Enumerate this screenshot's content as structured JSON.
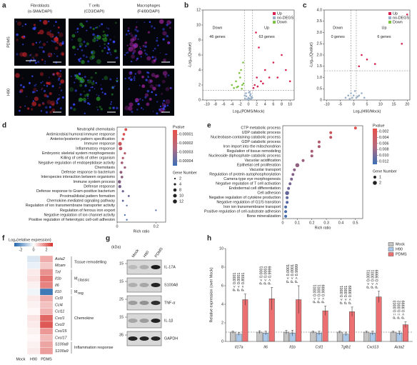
{
  "panel_labels": [
    "a",
    "b",
    "c",
    "d",
    "e",
    "f",
    "g",
    "h"
  ],
  "panel_a": {
    "columns": [
      {
        "title": "Fibroblasts",
        "stain": "(α-SMA/DAPI)",
        "color": "#d9262c"
      },
      {
        "title": "T cells",
        "stain": "(CD3/DAPI)",
        "color": "#2a9d2a"
      },
      {
        "title": "Macrophages",
        "stain": "(F4/80/DAPI)",
        "color": "#a626a4"
      }
    ],
    "rows": [
      "PDMS",
      "H90"
    ],
    "scale_bar": "25 μm",
    "marker": "*"
  },
  "chart_data": [
    {
      "type": "scatter",
      "xlabel": "Log₂(PDMS/Mock)",
      "ylabel": "-Log₁₀(Qvalue)",
      "xlim": [
        -11,
        11
      ],
      "xticks": [
        -10,
        -8,
        -6,
        -4,
        -2,
        0,
        2,
        4,
        6,
        8,
        10
      ],
      "ylim": [
        0,
        12
      ],
      "yticks": [
        0,
        2,
        4,
        6,
        8,
        10,
        12
      ],
      "vlines": [
        -1,
        1
      ],
      "hlines": [
        1.3
      ],
      "legend": "top-right",
      "annotations": [
        {
          "text": "Down",
          "color": "#3a9a3a"
        },
        {
          "text": "46 genes",
          "color": "#3a9a3a"
        },
        {
          "text": "Up",
          "color": "#d6204e"
        },
        {
          "text": "63 genes",
          "color": "#d6204e"
        }
      ],
      "series": [
        {
          "name": "Up",
          "color": "#d6204e",
          "x": [
            1.2,
            1.5,
            2,
            2.5,
            3,
            4,
            5,
            6,
            7,
            8,
            9,
            10,
            2.2,
            3.5,
            1.8
          ],
          "y": [
            1.6,
            2,
            3,
            7,
            2.5,
            4,
            3,
            5,
            3,
            6,
            4,
            2.5,
            1.8,
            2.2,
            9
          ]
        },
        {
          "name": "no-DEGS",
          "color": "#9bb0c8",
          "x": [
            -0.8,
            -0.5,
            -0.3,
            0,
            0.2,
            0.4,
            0.7,
            -0.6,
            0.1,
            0.5,
            -0.2,
            0.9,
            -0.9,
            0.3,
            0.6
          ],
          "y": [
            0.2,
            0.5,
            0.1,
            0.3,
            0.2,
            0.6,
            0.4,
            0.9,
            1.0,
            0.8,
            0.05,
            0.3,
            0.6,
            1.1,
            0.15
          ]
        },
        {
          "name": "Down",
          "color": "#7dc242",
          "x": [
            -1.3,
            -1.5,
            -1.8,
            -2,
            -2.2,
            -2.5,
            -3,
            -4,
            -1.6,
            -2.8,
            -1.2,
            -3.5
          ],
          "y": [
            5,
            2,
            4,
            3,
            3.6,
            1.8,
            2.5,
            2,
            1.5,
            1.7,
            2.2,
            1.6
          ]
        }
      ]
    },
    {
      "type": "scatter",
      "xlabel": "Log₂(H90/Mock)",
      "ylabel": "-Log₁₀(Qvalue)",
      "xlim": [
        -11,
        21
      ],
      "xticks": [
        -10,
        -5,
        0,
        5,
        10,
        15,
        20
      ],
      "ylim": [
        0,
        4
      ],
      "yticks": [
        0,
        0.5,
        {
          "value": 1,
          "label": "1.0"
        },
        1.5,
        {
          "value": 2,
          "label": "2.0"
        },
        2.5,
        {
          "value": 3,
          "label": "3.0"
        },
        3.5,
        {
          "value": 4,
          "label": "4.0"
        }
      ],
      "vlines": [
        -1,
        1
      ],
      "hlines": [
        1.3
      ],
      "legend": "top-right",
      "annotations": [
        {
          "text": "Down",
          "color": "#3a9a3a"
        },
        {
          "text": "0 genes",
          "color": "#3a9a3a"
        },
        {
          "text": "Up",
          "color": "#d6204e"
        },
        {
          "text": "6 genes",
          "color": "#d6204e"
        }
      ],
      "series": [
        {
          "name": "Up",
          "color": "#d6204e",
          "x": [
            2,
            3,
            5,
            8,
            18,
            20
          ],
          "y": [
            1.5,
            2,
            1.8,
            1.6,
            2.5,
            3.8
          ]
        },
        {
          "name": "no-DEGS",
          "color": "#9bb0c8",
          "x": [
            -3,
            -2,
            -1,
            -0.5,
            0,
            0.5,
            1,
            2,
            3,
            4,
            -1.5,
            1.5
          ],
          "y": [
            0.1,
            0.2,
            0.3,
            0.1,
            0.2,
            0.4,
            0.1,
            0.2,
            0.3,
            0.1,
            0.05,
            0.15
          ]
        },
        {
          "name": "Down",
          "color": "#7dc242",
          "x": [],
          "y": []
        }
      ]
    },
    {
      "type": "bubble",
      "xlabel": "Rich ratio",
      "color_label": "Pvalue",
      "size_label": "Gene Number",
      "categories": [
        "Neutrophil chemotaxis",
        "Antimicrobial humoral immune response",
        "Anterior/posterior pattern specification",
        "Immune response",
        "Inflammatory response",
        "Embryonic skeletal system morphogenesis",
        "Killing of cells of other organism",
        "Negative regulation of endopeptidase activity",
        "Chemotaxis",
        "Defense response to bacterium",
        "Interspecies interaction between organisms",
        "Immune system process",
        "Defense response",
        "Defense response to Gram-positive bacterium",
        "Proximal/distal pattern formation",
        "Chemokine-mediated signaling pathway",
        "Regulation of ion transmembrane transporter activity",
        "Regulation of ferrous iron export",
        "Negative regulation of ion channel activity",
        "Positive regulation of heterotypic cell-cell adhesion"
      ],
      "values": [
        0.045,
        0.035,
        0.03,
        0.015,
        0.018,
        0.04,
        0.03,
        0.025,
        0.04,
        0.02,
        0.025,
        0.012,
        0.014,
        0.03,
        0.06,
        0.03,
        0.05,
        0.2,
        0.04,
        0.05
      ],
      "pvalues": [
        8e-06,
        9e-06,
        1e-05,
        1.2e-05,
        1.4e-05,
        1.6e-05,
        1.8e-05,
        2e-05,
        2.2e-05,
        2.4e-05,
        2.6e-05,
        2.8e-05,
        3e-05,
        3.2e-05,
        3.4e-05,
        3.6e-05,
        3.8e-05,
        4e-05,
        4.1e-05,
        4.2e-05
      ],
      "gene_counts": [
        6,
        5,
        5,
        10,
        9,
        4,
        4,
        5,
        4,
        6,
        5,
        8,
        7,
        4,
        3,
        3,
        2,
        2,
        2,
        2
      ],
      "xlim": [
        0,
        0.25
      ],
      "xticks": [
        0,
        0.2
      ],
      "clim": [
        5e-06,
        4.5e-05
      ],
      "cticks": [
        1e-05,
        2e-05,
        3e-05,
        4e-05
      ],
      "size_legend": [
        2,
        4,
        8,
        10,
        12
      ]
    },
    {
      "type": "bubble",
      "xlabel": "Rich ratio",
      "color_label": "Pvalue",
      "size_label": "Gene Number",
      "categories": [
        "CTP metabolic process",
        "UDP catabolic process",
        "Nucleobase-containing catabolic process",
        "GDP catabolic process",
        "Iron import into the mitochondrion",
        "Regulation of tissue remodeling",
        "Nucleoside diphosphate catabolic process",
        "Vacuolar acidification",
        "Epithelial cell proliferation",
        "Vacuolar transport",
        "Regulation of protein autophosphorylation",
        "Camera-type eye morphogenesis",
        "Negative regulation of T cell activation",
        "Endodermal cell differentiation",
        "Cell adhesion",
        "Negative regulation of cytokine production",
        "Negative regulation of G1/S transition",
        "Iron ion transmembrane transport",
        "Positive regulation of cell-substrate adhesion",
        "Bone mineralization"
      ],
      "values": [
        0.5,
        0.33,
        0.33,
        0.25,
        0.25,
        0.2,
        0.2,
        0.14,
        0.1,
        0.08,
        0.07,
        0.06,
        0.05,
        0.04,
        0.03,
        0.03,
        0.03,
        0.02,
        0.02,
        0.02
      ],
      "pvalues": [
        0.0015,
        0.003,
        0.004,
        0.0045,
        0.005,
        0.0055,
        0.006,
        0.0065,
        0.007,
        0.0075,
        0.008,
        0.0085,
        0.009,
        0.0095,
        0.01,
        0.0105,
        0.011,
        0.0115,
        0.012,
        0.0125
      ],
      "gene_counts": [
        1,
        1,
        1,
        1,
        1,
        1,
        1,
        1,
        2,
        1,
        1,
        1,
        1,
        1,
        2,
        1,
        1,
        1,
        1,
        1
      ],
      "xlim": [
        0,
        0.55
      ],
      "xticks": [
        0,
        0.1,
        0.2,
        0.3,
        0.4,
        0.5
      ],
      "clim": [
        0.001,
        0.013
      ],
      "cticks": [
        0.002,
        0.004,
        0.006,
        0.008,
        {
          "value": 0.01,
          "label": "0.010"
        },
        0.012
      ],
      "size_legend": [
        1,
        2
      ]
    },
    {
      "type": "heatmap",
      "color_label": "Log₂(relative expression)",
      "columns": [
        "Mock",
        "H90",
        "PDMS"
      ],
      "rows": [
        "Acta2",
        "Mcam",
        "Tnf",
        "Il1b",
        "Il6",
        "Il10",
        "Ccl3",
        "Ccl4",
        "Ccl11",
        "Cxcl1",
        "Cxcl2",
        "Cxcl15",
        "Cxcl17",
        "S100a8",
        "S100a9"
      ],
      "values": [
        [
          0,
          -0.5,
          1.2
        ],
        [
          0,
          -0.3,
          0.8
        ],
        [
          0,
          0.3,
          1.6
        ],
        [
          0,
          0.4,
          2.0
        ],
        [
          0,
          0.2,
          1.8
        ],
        [
          0,
          -0.2,
          -2.6
        ],
        [
          0,
          0.3,
          1.2
        ],
        [
          0,
          0.2,
          0.9
        ],
        [
          0,
          0.1,
          1.1
        ],
        [
          0,
          0.4,
          2.2
        ],
        [
          0,
          0.3,
          2.4
        ],
        [
          0,
          0.2,
          1.5
        ],
        [
          0,
          0.1,
          1.0
        ],
        [
          0,
          0.2,
          1.3
        ],
        [
          0,
          0.3,
          1.4
        ]
      ],
      "clim": [
        -3,
        3
      ],
      "cticks": [
        -2,
        0,
        2
      ],
      "groups": [
        "Tissue remodelling",
        {
          "main": "M",
          "sub": "classic"
        },
        {
          "main": "M",
          "sub": "reg"
        },
        "Chemokine",
        "Inflammation response"
      ]
    },
    {
      "type": "bar",
      "ylabel": "Relative expression (over Mock)",
      "categories": [
        "Il17a",
        "Il6",
        "Il1b",
        "Csf1",
        "Tgfb1",
        "Cxcl13",
        "Acta2"
      ],
      "ylim": [
        0,
        10
      ],
      "yticks": [
        0,
        2,
        4,
        6,
        8,
        10
      ],
      "hline": 1,
      "legend": "top-right",
      "series": [
        {
          "name": "Mock",
          "color": "#c4c4c4",
          "values": [
            1,
            1,
            1,
            1,
            1,
            1,
            1
          ],
          "errors": [
            0.1,
            0.15,
            0.2,
            0.1,
            0.1,
            0.1,
            0.1
          ]
        },
        {
          "name": "H90",
          "color": "#a9c8ea",
          "values": [
            0.8,
            0.9,
            0.9,
            0.9,
            0.8,
            0.9,
            0.9
          ],
          "errors": [
            0.15,
            0.2,
            0.3,
            0.2,
            0.2,
            0.2,
            0.2
          ]
        },
        {
          "name": "PDMS",
          "color": "#ec6f72",
          "values": [
            4.5,
            4.6,
            4.5,
            3.3,
            3.2,
            4.8,
            1.8
          ],
          "errors": [
            0.6,
            1.2,
            1.5,
            0.5,
            0.5,
            0.6,
            0.3
          ]
        }
      ],
      "p_labels": [
        [
          "P < 0.0001",
          "P < 0.0001",
          "P = 0.8591"
        ],
        [
          "P < 0.0001",
          "P < 0.0001",
          "P > 0.9999"
        ],
        [
          "P < 0.0001",
          "P < 0.0001",
          "P > 0.9999"
        ],
        [
          "P < 0.0001",
          "P < 0.0001",
          "P > 0.9999"
        ],
        [
          "P < 0.0001",
          "P < 0.0001",
          "P > 0.9999"
        ],
        [
          "P < 0.0001",
          "P < 0.0001",
          "P > 0.9999"
        ],
        [
          "P = 0.0003",
          "P = 0.0002",
          "P > 0.9999"
        ]
      ]
    }
  ],
  "panel_g": {
    "unit": "(kDa)",
    "lanes": [
      "Mock",
      "H90",
      "PDMS"
    ],
    "proteins": [
      "IL-17A",
      "S100A8",
      "TNF-α",
      "IL-1β",
      "GAPDH"
    ],
    "kda": [
      "15",
      "15",
      "25",
      "15",
      "35"
    ]
  }
}
